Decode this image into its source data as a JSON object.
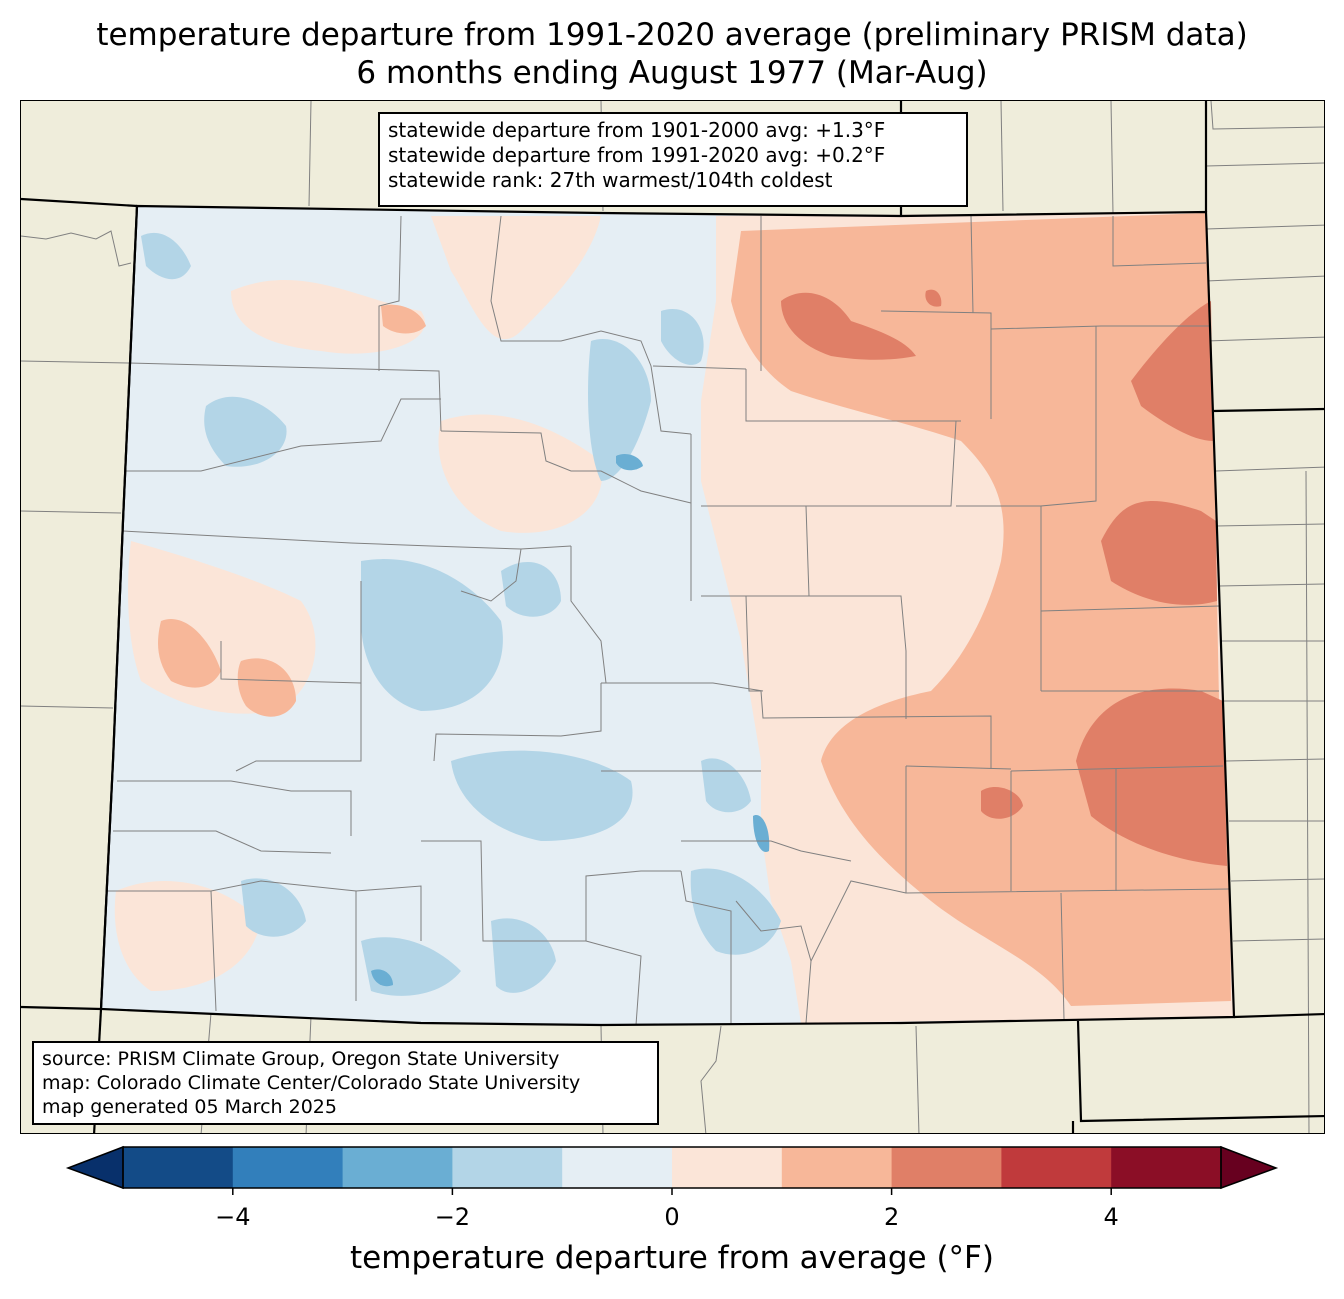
{
  "title": {
    "line1": "temperature departure from 1991-2020 average (preliminary PRISM data)",
    "line2": "6 months ending August 1977 (Mar-Aug)"
  },
  "stats": {
    "line1": "statewide departure from 1901-2000 avg: +1.3°F",
    "line2": "statewide departure from 1991-2020 avg: +0.2°F",
    "line3": "statewide rank: 27th warmest/104th coldest"
  },
  "source": {
    "line1": "source: PRISM Climate Group, Oregon State University",
    "line2": "map: Colorado Climate Center/Colorado State University",
    "line3": "map generated 05 March 2025"
  },
  "colorbar": {
    "label": "temperature departure from average (°F)",
    "ticks": [
      "−4",
      "−2",
      "0",
      "2",
      "4"
    ],
    "tick_values": [
      -4,
      -2,
      0,
      2,
      4
    ],
    "range": [
      -5,
      5
    ],
    "bin_edges": [
      -5,
      -4,
      -3,
      -2,
      -1,
      0,
      1,
      2,
      3,
      4,
      5
    ],
    "colors": [
      "#134b87",
      "#327fbb",
      "#6aaed3",
      "#b3d5e7",
      "#e5eef4",
      "#fbe5d8",
      "#f7b799",
      "#e07f67",
      "#c03a3c",
      "#8b0e26"
    ],
    "under_color": "#08306b",
    "over_color": "#67001f"
  },
  "map_colors": {
    "background": "#efeddb",
    "county_lines": "#808080",
    "state_lines": "#000000"
  }
}
